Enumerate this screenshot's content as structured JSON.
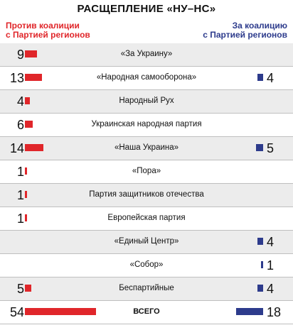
{
  "title": "РАСЩЕПЛЕНИЕ «НУ–НС»",
  "left_header": "Против коалиции\nс Партией регионов",
  "right_header": "За коалицию\nс Партией регионов",
  "colors": {
    "against": "#e0262a",
    "for": "#2d3b8c",
    "shade": "#ececec"
  },
  "chart_data": {
    "type": "bar",
    "series": [
      {
        "name": "Против коалиции с Партией регионов",
        "values": [
          9,
          13,
          4,
          6,
          14,
          1,
          1,
          1,
          null,
          null,
          5,
          54
        ]
      },
      {
        "name": "За коалицию с Партией регионов",
        "values": [
          null,
          4,
          null,
          null,
          5,
          null,
          null,
          null,
          4,
          1,
          4,
          18
        ]
      }
    ],
    "categories": [
      "«За Украину»",
      "«Народная самооборона»",
      "Народный Рух",
      "Украинская народная партия",
      "«Наша Украина»",
      "«Пора»",
      "Партия защитников отечества",
      "Европейская партия",
      "«Единый Центр»",
      "«Собор»",
      "Беспартийные",
      "ВСЕГО"
    ],
    "rows": [
      {
        "label": "«За Украину»",
        "against": "9",
        "for": ""
      },
      {
        "label": "«Народная самооборона»",
        "against": "13",
        "for": "4"
      },
      {
        "label": "Народный Рух",
        "against": "4",
        "for": ""
      },
      {
        "label": "Украинская народная партия",
        "against": "6",
        "for": ""
      },
      {
        "label": "«Наша Украина»",
        "against": "14",
        "for": "5"
      },
      {
        "label": "«Пора»",
        "against": "1",
        "for": ""
      },
      {
        "label": "Партия защитников отечества",
        "against": "1",
        "for": ""
      },
      {
        "label": "Европейская партия",
        "against": "1",
        "for": ""
      },
      {
        "label": "«Единый Центр»",
        "against": "",
        "for": "4"
      },
      {
        "label": "«Собор»",
        "against": "",
        "for": "1"
      },
      {
        "label": "Беспартийные",
        "against": "5",
        "for": "4"
      },
      {
        "label": "ВСЕГО",
        "against": "54",
        "for": "18"
      }
    ]
  }
}
